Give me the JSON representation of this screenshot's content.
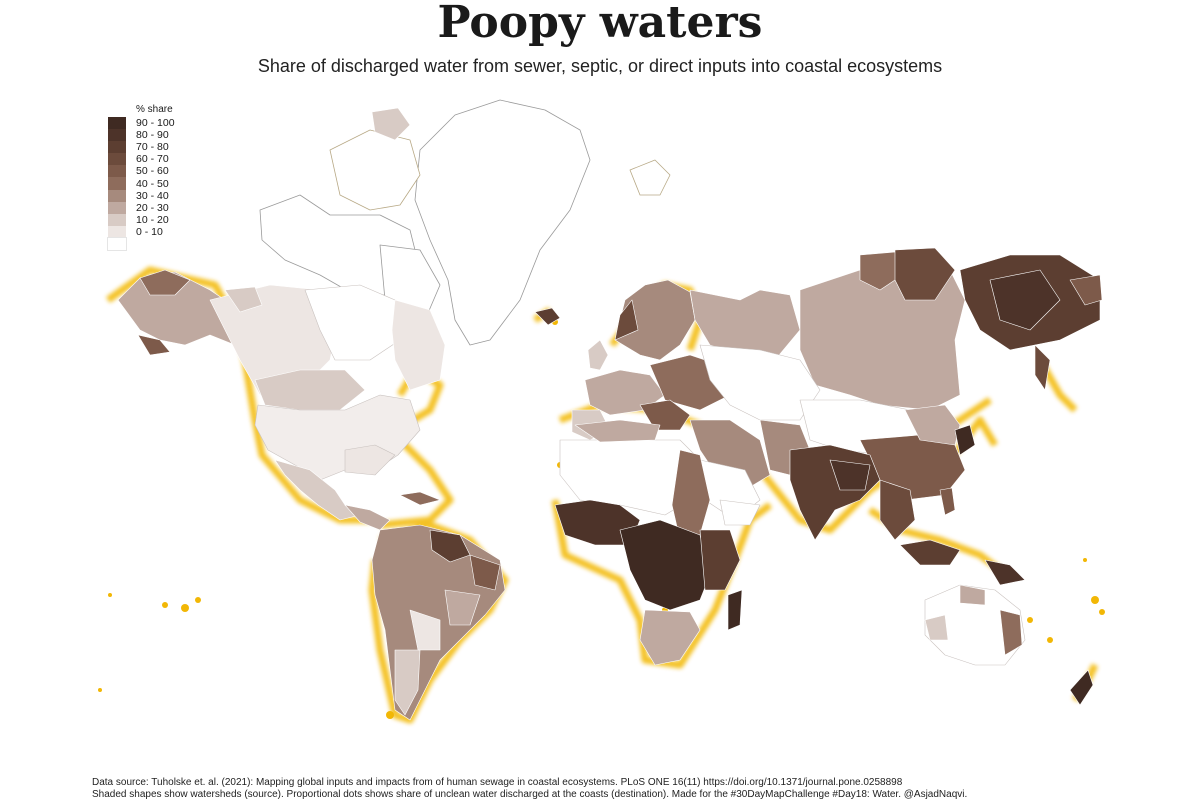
{
  "header": {
    "title": "Poopy waters",
    "subtitle": "Share of discharged water from sewer, septic, or direct inputs into coastal ecosystems"
  },
  "legend": {
    "title": "% share",
    "items": [
      {
        "label": "90 - 100",
        "color": "#3f2a22"
      },
      {
        "label": "80 - 90",
        "color": "#4d3329"
      },
      {
        "label": "70 - 80",
        "color": "#5c3e31"
      },
      {
        "label": "60 - 70",
        "color": "#6c4b3c"
      },
      {
        "label": "50 - 60",
        "color": "#7d5a4a"
      },
      {
        "label": "40 - 50",
        "color": "#8e6c5c"
      },
      {
        "label": "30 - 40",
        "color": "#a68a7d"
      },
      {
        "label": "20 - 30",
        "color": "#bfa9a0"
      },
      {
        "label": "10 - 20",
        "color": "#d8cbc5"
      },
      {
        "label": "0 - 10",
        "color": "#ede6e3"
      },
      {
        "label": "",
        "color": "#ffffff"
      }
    ]
  },
  "map_style": {
    "coast_dot_color": "#f2b705",
    "greenland_color": "#ffffff",
    "border_color": "#c9c2bf"
  },
  "footer": {
    "line1": "Data source: Tuholske et. al. (2021): Mapping global inputs and impacts from of human sewage in coastal ecosystems. PLoS ONE 16(11) https://doi.org/10.1371/journal.pone.0258898",
    "line2": "Shaded shapes show watersheds (source). Proportional dots shows share of unclean water discharged at the coasts (destination). Made for the #30DayMapChallenge #Day18: Water. @AsjadNaqvi."
  }
}
